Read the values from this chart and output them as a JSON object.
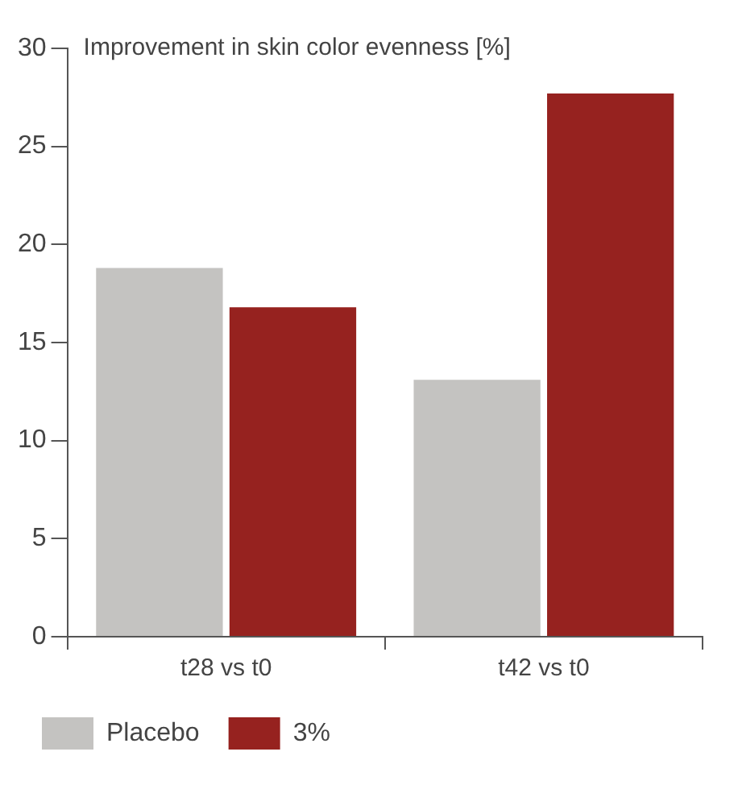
{
  "chart_data": {
    "type": "bar",
    "ylabel": "Improvement in skin color evenness [%]",
    "categories": [
      "t28 vs t0",
      "t42 vs t0"
    ],
    "series": [
      {
        "name": "Placebo",
        "color": "#c4c3c1",
        "values": [
          18.8,
          13.1
        ]
      },
      {
        "name": "3%",
        "color": "#96221f",
        "values": [
          16.8,
          27.7
        ]
      }
    ],
    "ylim": [
      0,
      30
    ],
    "yticks": [
      0,
      5,
      10,
      15,
      20,
      25,
      30
    ],
    "grid": false,
    "legend": "bottom"
  }
}
